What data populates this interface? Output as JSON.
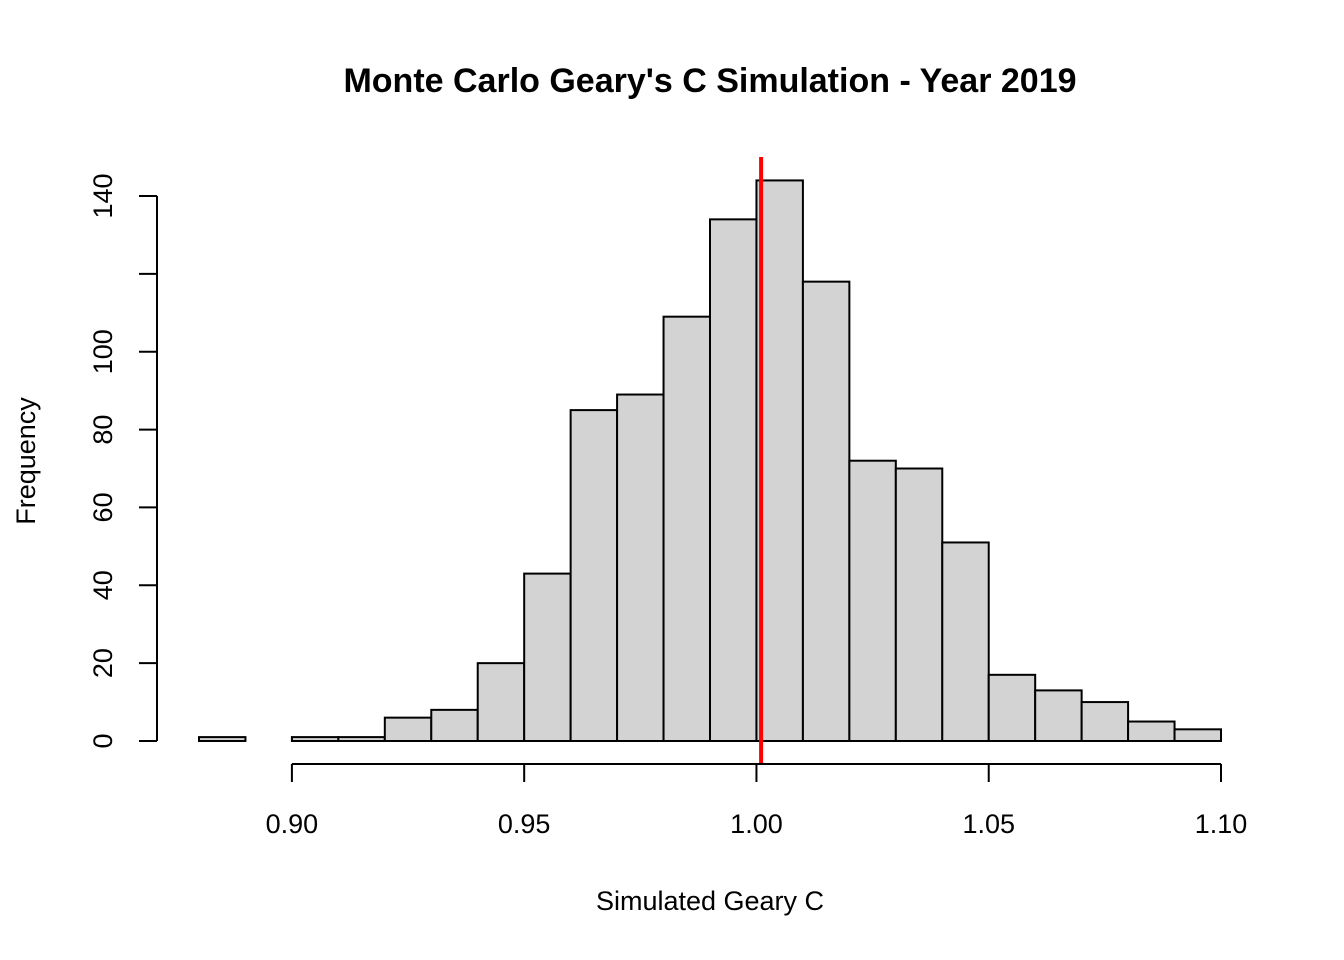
{
  "chart_data": {
    "type": "bar",
    "subtype": "histogram",
    "title": "Monte Carlo Geary's C Simulation - Year 2019",
    "xlabel": "Simulated Geary C",
    "ylabel": "Frequency",
    "bin_width": 0.01,
    "bins": [
      {
        "start": 0.88,
        "end": 0.89,
        "count": 1
      },
      {
        "start": 0.89,
        "end": 0.9,
        "count": 0
      },
      {
        "start": 0.9,
        "end": 0.91,
        "count": 1
      },
      {
        "start": 0.91,
        "end": 0.92,
        "count": 1
      },
      {
        "start": 0.92,
        "end": 0.93,
        "count": 6
      },
      {
        "start": 0.93,
        "end": 0.94,
        "count": 8
      },
      {
        "start": 0.94,
        "end": 0.95,
        "count": 20
      },
      {
        "start": 0.95,
        "end": 0.96,
        "count": 43
      },
      {
        "start": 0.96,
        "end": 0.97,
        "count": 85
      },
      {
        "start": 0.97,
        "end": 0.98,
        "count": 89
      },
      {
        "start": 0.98,
        "end": 0.99,
        "count": 109
      },
      {
        "start": 0.99,
        "end": 1.0,
        "count": 134
      },
      {
        "start": 1.0,
        "end": 1.01,
        "count": 144
      },
      {
        "start": 1.01,
        "end": 1.02,
        "count": 118
      },
      {
        "start": 1.02,
        "end": 1.03,
        "count": 72
      },
      {
        "start": 1.03,
        "end": 1.04,
        "count": 70
      },
      {
        "start": 1.04,
        "end": 1.05,
        "count": 51
      },
      {
        "start": 1.05,
        "end": 1.06,
        "count": 17
      },
      {
        "start": 1.06,
        "end": 1.07,
        "count": 13
      },
      {
        "start": 1.07,
        "end": 1.08,
        "count": 10
      },
      {
        "start": 1.08,
        "end": 1.09,
        "count": 5
      },
      {
        "start": 1.09,
        "end": 1.1,
        "count": 3
      }
    ],
    "xlim": [
      0.88,
      1.1
    ],
    "ylim": [
      0,
      150
    ],
    "x_ticks": [
      0.9,
      0.95,
      1.0,
      1.05,
      1.1
    ],
    "x_tick_labels": [
      "0.90",
      "0.95",
      "1.00",
      "1.05",
      "1.10"
    ],
    "y_ticks": [
      0,
      20,
      40,
      60,
      80,
      100,
      120,
      140
    ],
    "y_tick_labels": [
      "0",
      "20",
      "40",
      "60",
      "80",
      "100",
      "",
      "140"
    ],
    "reference_line": {
      "x": 1.001,
      "color": "#ff0000"
    },
    "bar_fill": "#d3d3d3",
    "grid": false,
    "legend": "none"
  }
}
